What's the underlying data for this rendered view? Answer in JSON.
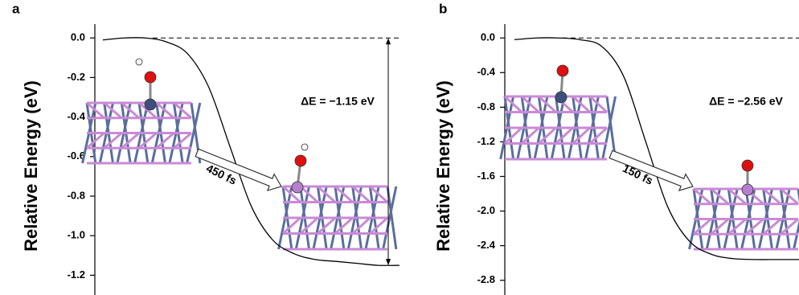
{
  "chart_data": [
    {
      "type": "line",
      "panel_label": "a",
      "ylabel": "Relative Energy (eV)",
      "values": [
        -0.01,
        0.0,
        0.0,
        -0.02,
        -0.08,
        -0.25,
        -0.55,
        -0.85,
        -1.02,
        -1.09,
        -1.12,
        -1.13,
        -1.14,
        -1.15,
        -1.15
      ],
      "color": "#000000",
      "ylim": [
        -1.3,
        0.07
      ],
      "yticks": [
        {
          "value": 0,
          "label": "0.0"
        },
        -0.2,
        -0.4,
        -0.6,
        -0.8,
        {
          "value": -1,
          "label": "-1.0"
        },
        -1.2
      ],
      "annotations": [
        "ΔE = −1.15 eV",
        "450 fs"
      ]
    },
    {
      "type": "line",
      "panel_label": "b",
      "ylabel": "Relative Energy (eV)",
      "values": [
        -0.02,
        0.0,
        0.0,
        -0.02,
        -0.1,
        -0.45,
        -1.2,
        -1.95,
        -2.35,
        -2.5,
        -2.55,
        -2.56,
        -2.56,
        -2.56
      ],
      "color": "#000000",
      "ylim": [
        -2.97,
        0.16
      ],
      "yticks": [
        {
          "value": 0,
          "label": "0.0"
        },
        -0.4,
        -0.8,
        -1.2,
        -1.6,
        {
          "value": -2,
          "label": "-2.0"
        },
        -2.4,
        -2.8
      ],
      "annotations": [
        "ΔE = −2.56 eV",
        "150 fs"
      ]
    }
  ]
}
